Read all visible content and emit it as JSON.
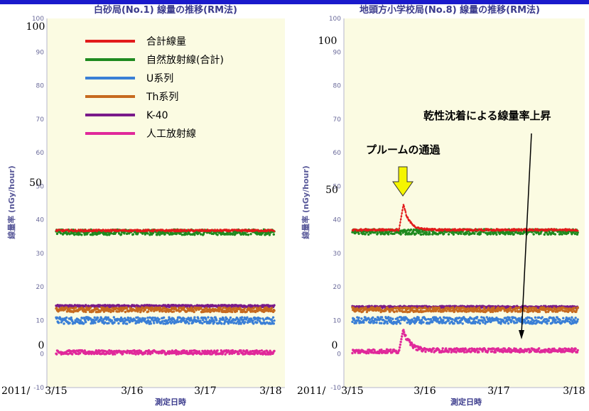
{
  "chart_data": [
    {
      "type": "scatter",
      "title": "白砂局(No.1) 線量の推移(RM法)",
      "xlabel": "測定日時",
      "ylabel": "線量率 (nGy/hour)",
      "ylim": [
        -10,
        100
      ],
      "yticks": [
        "100",
        "90",
        "80",
        "70",
        "60",
        "50",
        "40",
        "30",
        "20",
        "10",
        "0",
        "-10"
      ],
      "ytick_values": [
        100,
        90,
        80,
        70,
        60,
        50,
        40,
        30,
        20,
        10,
        0,
        -10
      ],
      "xlim": [
        0,
        3.05
      ],
      "x_date_prefix": "2011/",
      "xticks": [
        "3/15",
        "3/16",
        "3/17",
        "3/18"
      ],
      "xtick_values": [
        0,
        1,
        2,
        3
      ],
      "grid": false,
      "legend_position": "top-left",
      "series": [
        {
          "name": "合計線量",
          "color": "#e21b1b",
          "baseline": 36.8,
          "noise": 0.3
        },
        {
          "name": "自然放射線(合計)",
          "color": "#1f8a1f",
          "baseline": 36.3,
          "noise": 0.8
        },
        {
          "name": "U系列",
          "color": "#3a7fd6",
          "baseline": 10.0,
          "noise": 1.0
        },
        {
          "name": "Th系列",
          "color": "#c66a1f",
          "baseline": 13.2,
          "noise": 0.7
        },
        {
          "name": "K-40",
          "color": "#7a1a8a",
          "baseline": 14.3,
          "noise": 0.3
        },
        {
          "name": "人工放射線",
          "color": "#e0289a",
          "baseline": 0.5,
          "noise": 0.6
        }
      ]
    },
    {
      "type": "scatter",
      "title": "地頭方小学校局(No.8) 線量の推移(RM法)",
      "xlabel": "測定日時",
      "ylabel": "線量率 (nGy/hour)",
      "ylim": [
        -10,
        100
      ],
      "yticks": [
        "100",
        "90",
        "80",
        "70",
        "60",
        "50",
        "40",
        "30",
        "20",
        "10",
        "0",
        "-10"
      ],
      "ytick_values": [
        100,
        90,
        80,
        70,
        60,
        50,
        40,
        30,
        20,
        10,
        0,
        -10
      ],
      "xlim": [
        0,
        3.05
      ],
      "x_date_prefix": "2011/",
      "xticks": [
        "3/15",
        "3/16",
        "3/17",
        "3/18"
      ],
      "xtick_values": [
        0,
        1,
        2,
        3
      ],
      "grid": false,
      "series": [
        {
          "name": "合計線量",
          "color": "#e21b1b",
          "baseline": 37.0,
          "noise": 0.3,
          "peak": {
            "x": 0.69,
            "y": 44.5
          }
        },
        {
          "name": "自然放射線(合計)",
          "color": "#1f8a1f",
          "baseline": 36.4,
          "noise": 0.8
        },
        {
          "name": "U系列",
          "color": "#3a7fd6",
          "baseline": 10.0,
          "noise": 1.0
        },
        {
          "name": "Th系列",
          "color": "#c66a1f",
          "baseline": 13.2,
          "noise": 0.7
        },
        {
          "name": "K-40",
          "color": "#7a1a8a",
          "baseline": 14.0,
          "noise": 0.3
        },
        {
          "name": "人工放射線",
          "color": "#e0289a",
          "baseline": 0.8,
          "noise": 0.6,
          "peak": {
            "x": 0.69,
            "y": 7.5
          }
        }
      ],
      "annotations": [
        {
          "text": "プルームの通過"
        },
        {
          "text": "乾性沈着による線量率上昇"
        }
      ]
    }
  ],
  "overlay_labels": {
    "left_y": [
      "100",
      "50",
      "0"
    ],
    "right_y": [
      "100",
      "50",
      "0"
    ],
    "year": "2011/",
    "x_left": [
      "3/15",
      "3/16",
      "3/17",
      "3/18"
    ],
    "x_right": [
      "3/15",
      "3/16",
      "3/17",
      "3/18"
    ]
  },
  "colors": {
    "plot_bg": "#fbfbe2",
    "header_bar": "#1a1acc",
    "arrow_fill": "#f5f500"
  }
}
